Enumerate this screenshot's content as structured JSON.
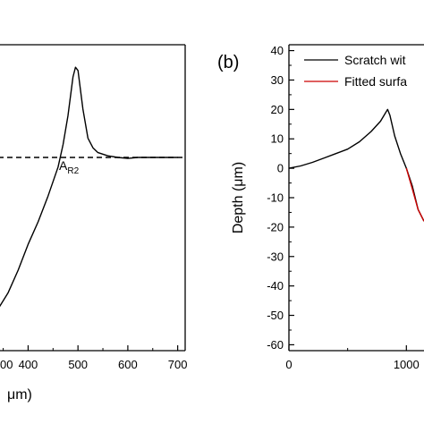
{
  "chart_data": [
    {
      "panel": "a",
      "type": "line",
      "xlabel": "μm)",
      "ylabel": "",
      "xticks": [
        "400",
        "500",
        "600",
        "700"
      ],
      "xticks_partial": [
        "00"
      ],
      "xlim": [
        340,
        715
      ],
      "ylim": [
        -60,
        35
      ],
      "annotation": {
        "main": "A",
        "sub": "R2"
      },
      "series": [
        {
          "style": "solid",
          "x": [
            340,
            360,
            380,
            400,
            420,
            440,
            460,
            470,
            480,
            490,
            495,
            500,
            510,
            520,
            530,
            540,
            560,
            580,
            600,
            620,
            650,
            700
          ],
          "y": [
            -47,
            -42,
            -35,
            -27,
            -20,
            -12,
            -3,
            4,
            13,
            25,
            28,
            27,
            15,
            6,
            3,
            1.5,
            0.5,
            0,
            -0.3,
            0,
            0,
            0
          ]
        },
        {
          "style": "dashed",
          "x": [
            340,
            715
          ],
          "y": [
            0,
            0
          ]
        }
      ]
    },
    {
      "panel": "b",
      "type": "line",
      "label": "(b)",
      "xlabel": "",
      "ylabel": "Depth (μm)",
      "xticks": [
        "0",
        "1000"
      ],
      "yticks": [
        "40",
        "30",
        "20",
        "10",
        "0",
        "-10",
        "-20",
        "-30",
        "-40",
        "-50",
        "-60"
      ],
      "xlim": [
        0,
        1150
      ],
      "ylim": [
        -62,
        42
      ],
      "legend": [
        {
          "text": "Scratch wit",
          "color": "#000000"
        },
        {
          "text": "Fitted surfa",
          "color": "#cc0000"
        }
      ],
      "series": [
        {
          "color": "#000000",
          "x": [
            0,
            100,
            200,
            300,
            400,
            500,
            600,
            700,
            780,
            840,
            860,
            900,
            950,
            1000,
            1050,
            1100,
            1150
          ],
          "y": [
            0,
            0.8,
            2,
            3.5,
            5,
            6.5,
            9,
            12.5,
            16,
            20,
            18,
            11,
            5,
            0,
            -6,
            -14,
            -18
          ]
        },
        {
          "color": "#cc0000",
          "x": [
            1000,
            1050,
            1100,
            1150
          ],
          "y": [
            0,
            -7,
            -14,
            -18
          ]
        }
      ]
    }
  ]
}
